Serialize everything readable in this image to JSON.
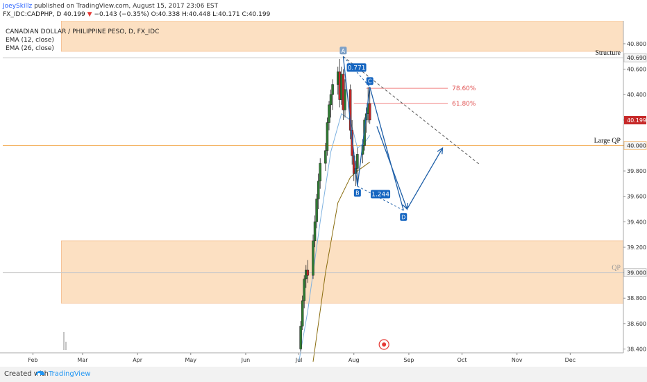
{
  "header": {
    "author": "JoeySkillz",
    "published": "published on TradingView.com, August 15, 2017 23:06 EST"
  },
  "symbol_line": {
    "symbol": "FX_IDC:CADPHP, D",
    "last": "40.199",
    "arrow": "▼",
    "change": "−0.143 (−0.35%)",
    "ohlc": "O:40.338 H:40.448 L:40.171 C:40.199"
  },
  "legend": {
    "title": "CANADIAN DOLLAR / PHILIPPINE PESO, D, FX_IDC",
    "ema1": "EMA (12, close)",
    "ema2": "EMA (26, close)"
  },
  "footer": {
    "created_with": "Created with",
    "brand": "TradingView"
  },
  "colors": {
    "zone_fill": "#fbd5ad",
    "zone_stroke": "#f2b07a",
    "level_line": "#f4b566",
    "fib_line": "#f08080",
    "fib_text": "#e05050",
    "pattern": "#1e5fa8",
    "label_bg": "#1565c0",
    "ema12": "#7fb2e0",
    "ema26": "#8a6d10",
    "candle_up": "#2e7d32",
    "candle_down": "#c62828",
    "price_badge": "#c62828"
  },
  "chart_data": {
    "type": "candlestick",
    "title": "CANADIAN DOLLAR / PHILIPPINE PESO, D, FX_IDC",
    "x_ticks": [
      "Feb",
      "Mar",
      "Apr",
      "May",
      "Jun",
      "Jul",
      "Aug",
      "Sep",
      "Oct",
      "Nov",
      "Dec"
    ],
    "x_ticks_days": [
      31,
      59,
      90,
      120,
      151,
      181,
      212,
      243,
      273,
      304,
      334
    ],
    "x_range_days": [
      14,
      364
    ],
    "y_ticks": [
      "38.400",
      "38.600",
      "38.800",
      "39.000",
      "39.200",
      "39.400",
      "39.600",
      "39.800",
      "40.000",
      "40.200",
      "40.400",
      "40.600",
      "40.800"
    ],
    "y_range": [
      38.37,
      40.98
    ],
    "last_price_label": "40.199",
    "last_price": 40.199,
    "candles": [
      {
        "t": 182,
        "o": 38.4,
        "h": 38.62,
        "l": 38.38,
        "c": 38.58
      },
      {
        "t": 183,
        "o": 38.58,
        "h": 38.82,
        "l": 38.55,
        "c": 38.78
      },
      {
        "t": 184,
        "o": 38.78,
        "h": 38.98,
        "l": 38.72,
        "c": 38.95
      },
      {
        "t": 185,
        "o": 38.95,
        "h": 39.06,
        "l": 38.88,
        "c": 39.02
      },
      {
        "t": 186,
        "o": 39.02,
        "h": 39.1,
        "l": 38.92,
        "c": 38.98
      },
      {
        "t": 189,
        "o": 38.98,
        "h": 39.3,
        "l": 38.95,
        "c": 39.25
      },
      {
        "t": 190,
        "o": 39.25,
        "h": 39.45,
        "l": 39.2,
        "c": 39.4
      },
      {
        "t": 191,
        "o": 39.4,
        "h": 39.62,
        "l": 39.35,
        "c": 39.58
      },
      {
        "t": 192,
        "o": 39.58,
        "h": 39.78,
        "l": 39.5,
        "c": 39.72
      },
      {
        "t": 193,
        "o": 39.72,
        "h": 39.9,
        "l": 39.66,
        "c": 39.86
      },
      {
        "t": 196,
        "o": 39.86,
        "h": 40.02,
        "l": 39.8,
        "c": 39.96
      },
      {
        "t": 197,
        "o": 39.96,
        "h": 40.22,
        "l": 39.92,
        "c": 40.18
      },
      {
        "t": 198,
        "o": 40.18,
        "h": 40.35,
        "l": 40.12,
        "c": 40.32
      },
      {
        "t": 199,
        "o": 40.32,
        "h": 40.44,
        "l": 40.22,
        "c": 40.4
      },
      {
        "t": 200,
        "o": 40.4,
        "h": 40.52,
        "l": 40.28,
        "c": 40.48
      },
      {
        "t": 203,
        "o": 40.48,
        "h": 40.62,
        "l": 40.4,
        "c": 40.58
      },
      {
        "t": 204,
        "o": 40.58,
        "h": 40.68,
        "l": 40.3,
        "c": 40.36
      },
      {
        "t": 205,
        "o": 40.36,
        "h": 40.62,
        "l": 40.32,
        "c": 40.56
      },
      {
        "t": 206,
        "o": 40.56,
        "h": 40.6,
        "l": 40.2,
        "c": 40.28
      },
      {
        "t": 207,
        "o": 40.28,
        "h": 40.52,
        "l": 40.22,
        "c": 40.44
      },
      {
        "t": 210,
        "o": 40.44,
        "h": 40.48,
        "l": 40.05,
        "c": 40.12
      },
      {
        "t": 211,
        "o": 40.12,
        "h": 40.2,
        "l": 39.85,
        "c": 39.92
      },
      {
        "t": 212,
        "o": 39.92,
        "h": 39.95,
        "l": 39.72,
        "c": 39.78
      },
      {
        "t": 213,
        "o": 39.78,
        "h": 39.88,
        "l": 39.68,
        "c": 39.82
      },
      {
        "t": 214,
        "o": 39.82,
        "h": 39.98,
        "l": 39.7,
        "c": 39.93
      },
      {
        "t": 217,
        "o": 39.93,
        "h": 40.05,
        "l": 39.86,
        "c": 40.0
      },
      {
        "t": 218,
        "o": 40.0,
        "h": 40.22,
        "l": 39.96,
        "c": 40.2
      },
      {
        "t": 219,
        "o": 40.2,
        "h": 40.3,
        "l": 40.1,
        "c": 40.25
      },
      {
        "t": 220,
        "o": 40.25,
        "h": 40.46,
        "l": 40.18,
        "c": 40.33
      },
      {
        "t": 221,
        "o": 40.33,
        "h": 40.45,
        "l": 40.17,
        "c": 40.2
      }
    ],
    "ema12": [
      {
        "t": 181,
        "v": 38.3
      },
      {
        "t": 186,
        "v": 38.7
      },
      {
        "t": 193,
        "v": 39.4
      },
      {
        "t": 199,
        "v": 39.95
      },
      {
        "t": 205,
        "v": 40.25
      },
      {
        "t": 210,
        "v": 40.2
      },
      {
        "t": 214,
        "v": 39.98
      },
      {
        "t": 218,
        "v": 40.02
      },
      {
        "t": 221,
        "v": 40.08
      }
    ],
    "ema26": [
      {
        "t": 189,
        "v": 38.3
      },
      {
        "t": 196,
        "v": 39.0
      },
      {
        "t": 203,
        "v": 39.55
      },
      {
        "t": 210,
        "v": 39.75
      },
      {
        "t": 214,
        "v": 39.8
      },
      {
        "t": 218,
        "v": 39.84
      },
      {
        "t": 221,
        "v": 39.87
      }
    ],
    "zones": [
      {
        "t_start": 47,
        "p_top": 40.98,
        "p_bottom": 40.74
      },
      {
        "t_start": 47,
        "p_top": 39.25,
        "p_bottom": 38.76
      }
    ],
    "levels": [
      {
        "price": 40.69,
        "label": "Structure",
        "value_label": "40.690",
        "style": "gray"
      },
      {
        "price": 40.0,
        "label": "Large QP",
        "value_label": "40.000",
        "style": "orange"
      },
      {
        "price": 39.0,
        "label": "QP",
        "value_label": "39.000",
        "style": "gray"
      }
    ],
    "fib_lines": [
      {
        "price": 40.45,
        "t_start": 219,
        "t_end": 265,
        "label": "78.60%"
      },
      {
        "price": 40.33,
        "t_start": 212,
        "t_end": 265,
        "label": "61.80%"
      }
    ],
    "pattern": {
      "points": [
        {
          "name": "A",
          "t": 206,
          "p": 40.7
        },
        {
          "name": "B",
          "t": 214,
          "p": 39.68
        },
        {
          "name": "C",
          "t": 221,
          "p": 40.46
        },
        {
          "name": "D",
          "t": 240,
          "p": 39.49
        }
      ],
      "ratio_ac": "0.771",
      "ratio_bd": "1.244"
    },
    "projection": [
      {
        "t": 225,
        "p": 40.15
      },
      {
        "t": 242,
        "p": 39.5
      },
      {
        "t": 262,
        "p": 39.98
      }
    ],
    "trendline": {
      "t1": 206,
      "p1": 40.7,
      "t2": 283,
      "p2": 39.85
    }
  }
}
